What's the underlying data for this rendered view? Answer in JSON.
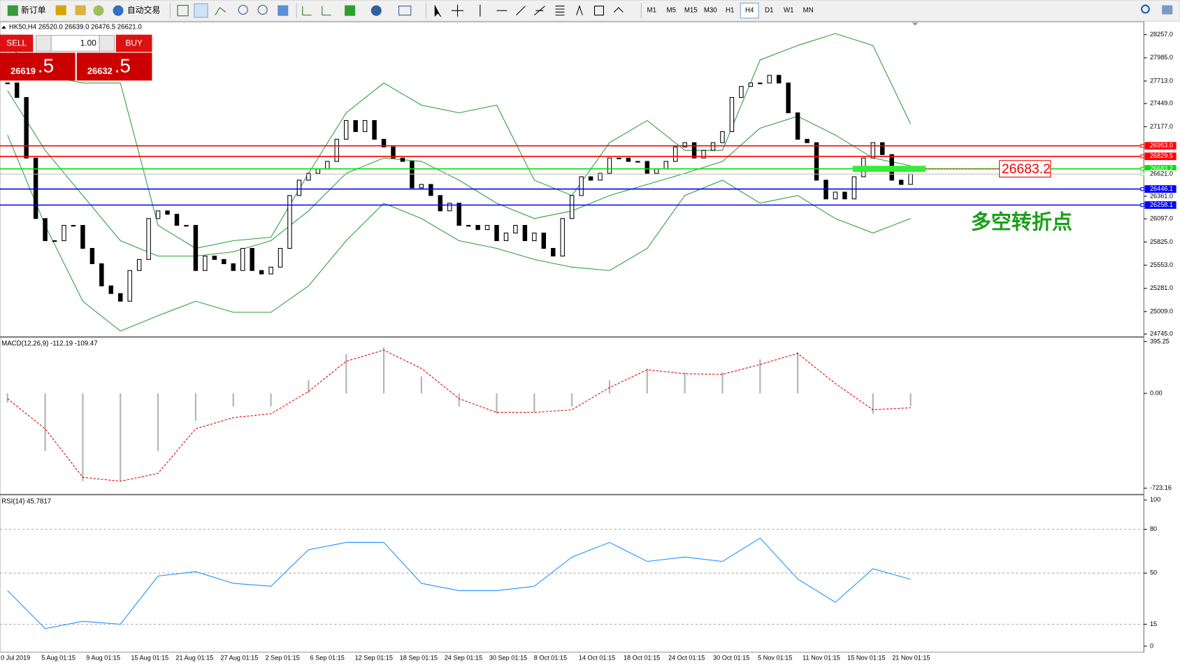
{
  "toolbar": {
    "new_order": "新订单",
    "auto_trade": "自动交易",
    "timeframes": [
      "M1",
      "M5",
      "M15",
      "M30",
      "H1",
      "H4",
      "D1",
      "W1",
      "MN"
    ],
    "selected": "H4"
  },
  "trade_panel": {
    "sell": "SELL",
    "lots": "1.00",
    "buy": "BUY",
    "bid_main": "26619",
    "bid_pips": ".5",
    "ask_main": "26632",
    "ask_pips": ".5"
  },
  "chart_data": [
    {
      "type": "candlestick",
      "title": "HK50,H4  26520.0 26639.0 26476.5 26621.0",
      "values": [
        27690,
        27520,
        26810,
        26100,
        25840,
        25840,
        26020,
        26020,
        25750,
        25570,
        25310,
        25220,
        25130,
        25490,
        25620,
        26100,
        26190,
        26150,
        26020,
        26020,
        25490,
        25660,
        25620,
        25570,
        25490,
        25750,
        25490,
        25450,
        25530,
        25750,
        26370,
        26550,
        26630,
        26680,
        26770,
        27030,
        27250,
        27120,
        27250,
        27030,
        26940,
        26810,
        26770,
        26460,
        26500,
        26370,
        26190,
        26280,
        26020,
        26020,
        25970,
        26020,
        25840,
        25930,
        26020,
        25840,
        25930,
        25750,
        25660,
        26100,
        26370,
        26590,
        26550,
        26630,
        26810,
        26810,
        26770,
        26770,
        26630,
        26680,
        26770,
        26940,
        26990,
        26810,
        26900,
        26990,
        27120,
        27520,
        27650,
        27690,
        27690,
        27780,
        27690,
        27340,
        27030,
        26990,
        26550,
        26330,
        26410,
        26330,
        26590,
        26810,
        26990,
        26850,
        26550,
        26500,
        26621
      ],
      "bands": [
        {
          "name": "upper",
          "color": "#2e9e3e",
          "values": [
            28130,
            27780,
            27690,
            27690,
            26020,
            25750,
            25840,
            25880,
            26630,
            27340,
            27690,
            27430,
            27340,
            27430,
            26550,
            26370,
            26990,
            27250,
            26900,
            26900,
            27960,
            28130,
            28270,
            28130,
            27210
          ]
        },
        {
          "name": "middle",
          "color": "#2e9e3e",
          "values": [
            27600,
            26900,
            26370,
            25840,
            25660,
            25660,
            25710,
            25840,
            26190,
            26630,
            26810,
            26770,
            26550,
            26280,
            26100,
            26190,
            26370,
            26500,
            26630,
            26770,
            27160,
            27300,
            27080,
            26810,
            26720
          ]
        },
        {
          "name": "lower",
          "color": "#2e9e3e",
          "values": [
            27080,
            26020,
            25130,
            24780,
            24960,
            25130,
            25000,
            25000,
            25310,
            25840,
            26280,
            26100,
            25840,
            25750,
            25620,
            25530,
            25490,
            25750,
            26370,
            26550,
            26280,
            26370,
            26100,
            25930,
            26100
          ]
        }
      ],
      "ylim": [
        24719,
        28398
      ],
      "yticks": [
        {
          "value": 28257,
          "label": "28257.0"
        },
        {
          "value": 27985,
          "label": "27985.0"
        },
        {
          "value": 27713,
          "label": "27713.0"
        },
        {
          "value": 27449,
          "label": "27449.0"
        },
        {
          "value": 27177,
          "label": "27177.0"
        },
        {
          "value": 26361,
          "label": "26361.0"
        },
        {
          "value": 26097,
          "label": "26097.0"
        },
        {
          "value": 25825,
          "label": "25825.0"
        },
        {
          "value": 25553,
          "label": "25553.0"
        },
        {
          "value": 25281,
          "label": "25281.0"
        },
        {
          "value": 25009,
          "label": "25009.0"
        },
        {
          "value": 24745,
          "label": "24745.0"
        }
      ],
      "price_lines": [
        {
          "value": 26953,
          "label": "26953.0",
          "color": "#ff0000"
        },
        {
          "value": 26829.5,
          "label": "26829.5",
          "color": "#ff0000"
        },
        {
          "value": 26683.2,
          "label": "26683.2",
          "color": "#00e000"
        },
        {
          "value": 26621,
          "label": "26621.0",
          "color": "#c0c0c0"
        },
        {
          "value": 26446.1,
          "label": "26446.1",
          "color": "#0000ff"
        },
        {
          "value": 26258.1,
          "label": "26258.1",
          "color": "#0000ff"
        }
      ],
      "level_label": {
        "value": 26683.2,
        "label": "26683.2"
      },
      "annotation": "多空转折点",
      "date_labels": [
        "0 Jul 2019",
        "5 Aug 01:15",
        "9 Aug 01:15",
        "15 Aug 01:15",
        "21 Aug 01:15",
        "27 Aug 01:15",
        "2 Sep 01:15",
        "6 Sep 01:15",
        "12 Sep 01:15",
        "18 Sep 01:15",
        "24 Sep 01:15",
        "30 Sep 01:15",
        "8 Oct 01:15",
        "14 Oct 01:15",
        "18 Oct 01:15",
        "24 Oct 01:15",
        "30 Oct 01:15",
        "5 Nov 01:15",
        "11 Nov 01:15",
        "15 Nov 01:15",
        "21 Nov 01:15"
      ]
    },
    {
      "type": "macd",
      "title": "MACD(12,26,9) -112.19 -109.47",
      "series": [
        {
          "name": "histogram",
          "color": "#b4b4b4",
          "values": [
            -70,
            -440,
            -670,
            -670,
            -440,
            -210,
            -100,
            -100,
            100,
            300,
            350,
            130,
            -100,
            -155,
            -145,
            -100,
            100,
            190,
            160,
            160,
            260,
            315,
            0,
            -155,
            -100
          ]
        },
        {
          "name": "signal",
          "color": "#e00000",
          "values": [
            -40,
            -270,
            -640,
            -670,
            -610,
            -270,
            -185,
            -155,
            15,
            245,
            330,
            190,
            -40,
            -145,
            -145,
            -125,
            45,
            180,
            150,
            145,
            220,
            305,
            75,
            -125,
            -109.47
          ]
        }
      ],
      "ylim": [
        -763,
        424
      ],
      "yticks": [
        395.25,
        {
          "value": 0,
          "label": "0.00"
        },
        -723.16
      ]
    },
    {
      "type": "rsi",
      "title": "RSI(14) 45.7817",
      "series": [
        {
          "name": "rsi",
          "color": "#1e90ff",
          "values": [
            38,
            12,
            17,
            15,
            48,
            51,
            43,
            41,
            66,
            71,
            71,
            43,
            38,
            38,
            41,
            61,
            71,
            58,
            61,
            58,
            74,
            46,
            30,
            53,
            45.7817
          ]
        }
      ],
      "ylim": [
        -3.6,
        103
      ],
      "yticks": [
        100,
        80,
        50,
        15,
        0
      ],
      "levels": [
        80,
        50,
        15
      ]
    }
  ]
}
